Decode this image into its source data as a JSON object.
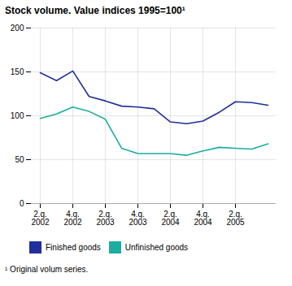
{
  "chart_data": {
    "type": "line",
    "title": "Stock volume. Value indices 1995=100¹",
    "footnote": "¹ Original volum series.",
    "categories": [
      "2.q.\n2002",
      null,
      "4.q.\n2002",
      null,
      "2.q.\n2003",
      null,
      "4.q.\n2003",
      null,
      "2.q.\n2004",
      null,
      "4.q.\n2004",
      null,
      "2.q.\n2005",
      null,
      null
    ],
    "series": [
      {
        "name": "Finished goods",
        "color": "#1f2f9c",
        "values": [
          149,
          140,
          151,
          122,
          117,
          111,
          110,
          108,
          93,
          91,
          94,
          104,
          116,
          115,
          112
        ]
      },
      {
        "name": "Unfinished goods",
        "color": "#1aada0",
        "values": [
          97,
          102,
          110,
          105,
          96,
          63,
          57,
          57,
          57,
          55,
          60,
          64,
          63,
          62,
          68
        ]
      }
    ],
    "ylim": [
      0,
      200
    ],
    "yticks": [
      0,
      50,
      100,
      150,
      200
    ],
    "grid": true,
    "legend": "bottom"
  }
}
